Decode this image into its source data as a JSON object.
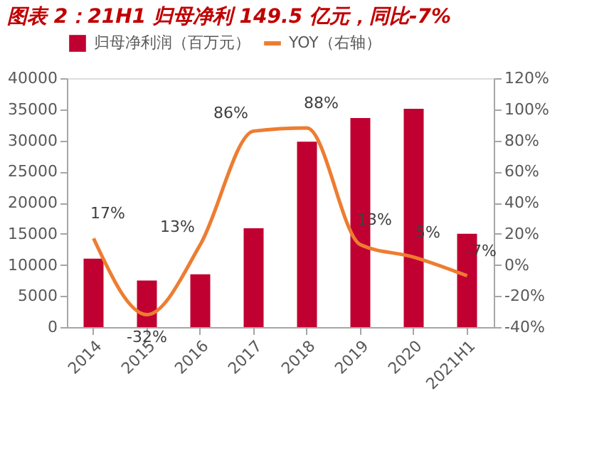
{
  "chart_data": {
    "type": "bar",
    "title": "图表 2：21H1 归母净利 149.5 亿元，同比-7%",
    "categories": [
      "2014",
      "2015",
      "2016",
      "2017",
      "2018",
      "2019",
      "2020",
      "2021H1"
    ],
    "series": [
      {
        "name": "归母净利润（百万元）",
        "color": "#c00030",
        "values": [
          11000,
          7500,
          8500,
          15900,
          29800,
          33600,
          35100,
          15000
        ]
      },
      {
        "name": "YOY（右轴）",
        "type": "line",
        "axis": "y2",
        "color": "#ed7d31",
        "values": [
          17,
          -32,
          13,
          86,
          88,
          13,
          5,
          -7
        ],
        "value_labels": [
          "17%",
          "-32%",
          "13%",
          "86%",
          "88%",
          "13%",
          "5%",
          "-7%"
        ]
      }
    ],
    "ylim": [
      0,
      40000
    ],
    "yticks": [
      0,
      5000,
      10000,
      15000,
      20000,
      25000,
      30000,
      35000,
      40000
    ],
    "y2lim": [
      -40,
      120
    ],
    "y2ticks": [
      {
        "value": -40,
        "label": "-40%"
      },
      {
        "value": -20,
        "label": "-20%"
      },
      {
        "value": 0,
        "label": "0%"
      },
      {
        "value": 20,
        "label": "20%"
      },
      {
        "value": 40,
        "label": "40%"
      },
      {
        "value": 60,
        "label": "60%"
      },
      {
        "value": 80,
        "label": "80%"
      },
      {
        "value": 100,
        "label": "100%"
      },
      {
        "value": 120,
        "label": "120%"
      }
    ],
    "legend": "top",
    "grid": false,
    "line_style": "solid",
    "marker": "none"
  }
}
